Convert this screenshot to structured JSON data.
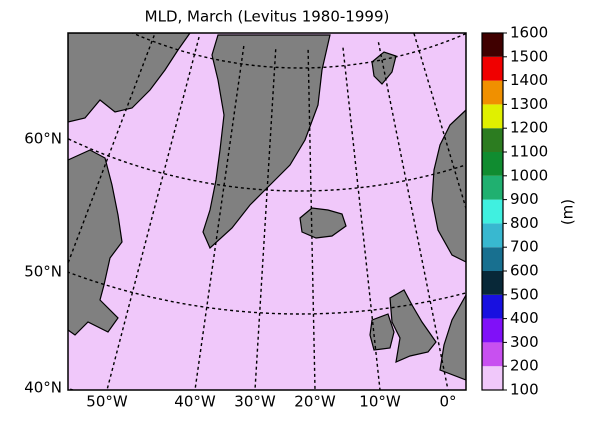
{
  "title": "MLD, March (Levitus 1980-1999)",
  "lat_labels": [
    "60°N",
    "50°N",
    "40°N"
  ],
  "lon_labels": [
    "50°W",
    "40°W",
    "30°W",
    "20°W",
    "10°W",
    "0°"
  ],
  "colorbar": {
    "label": "(m)",
    "ticks": [
      100,
      200,
      300,
      400,
      500,
      600,
      700,
      800,
      900,
      1000,
      1100,
      1200,
      1300,
      1400,
      1500,
      1600
    ],
    "colors": [
      "#f0c8fa",
      "#c850f0",
      "#8010f8",
      "#1810e0",
      "#082838",
      "#187090",
      "#38b8d0",
      "#40f0e0",
      "#20b070",
      "#108c30",
      "#2c7c20",
      "#e0f000",
      "#f09000",
      "#f00000",
      "#400000"
    ]
  }
}
